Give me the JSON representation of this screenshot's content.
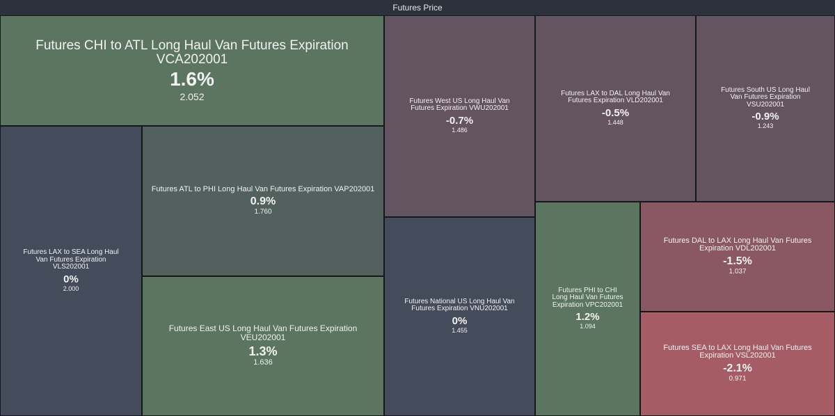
{
  "title": "Futures Price",
  "chart_data": {
    "type": "treemap",
    "title": "Futures Price",
    "size_field": "price",
    "color_field": "percent_change",
    "colors": {
      "positive": "#5b7560",
      "neutral": "#444b5a",
      "slightly_negative": "#645360",
      "negative": "#8a5862",
      "strongly_negative": "#a65c65"
    },
    "items": [
      {
        "name": "Futures CHI to ATL Long Haul Van Futures Expiration VCA202001",
        "change": "1.6%",
        "change_value": 1.6,
        "price": "2.052",
        "price_value": 2.052,
        "color": "#5b7560"
      },
      {
        "name": "Futures LAX to SEA Long Haul Van Futures Expiration VLS202001",
        "change": "0%",
        "change_value": 0,
        "price": "2.000",
        "price_value": 2.0,
        "color": "#444b5a"
      },
      {
        "name": "Futures ATL to PHI Long Haul Van Futures Expiration VAP202001",
        "change": "0.9%",
        "change_value": 0.9,
        "price": "1.760",
        "price_value": 1.76,
        "color": "#52615d"
      },
      {
        "name": "Futures East US Long Haul Van Futures Expiration VEU202001",
        "change": "1.3%",
        "change_value": 1.3,
        "price": "1.636",
        "price_value": 1.636,
        "color": "#5b7560"
      },
      {
        "name": "Futures West US Long Haul Van Futures Expiration VWU202001",
        "change": "-0.7%",
        "change_value": -0.7,
        "price": "1.486",
        "price_value": 1.486,
        "color": "#645360"
      },
      {
        "name": "Futures National US Long Haul Van Futures Expiration VNU202001",
        "change": "0%",
        "change_value": 0,
        "price": "1.455",
        "price_value": 1.455,
        "color": "#444b5a"
      },
      {
        "name": "Futures LAX to DAL Long Haul Van Futures Expiration VLD202001",
        "change": "-0.5%",
        "change_value": -0.5,
        "price": "1.448",
        "price_value": 1.448,
        "color": "#645360"
      },
      {
        "name": "Futures South US Long Haul Van Futures Expiration VSU202001",
        "change": "-0.9%",
        "change_value": -0.9,
        "price": "1.243",
        "price_value": 1.243,
        "color": "#645360"
      },
      {
        "name": "Futures PHI to CHI Long Haul Van Futures Expiration VPC202001",
        "change": "1.2%",
        "change_value": 1.2,
        "price": "1.094",
        "price_value": 1.094,
        "color": "#5b7560"
      },
      {
        "name": "Futures DAL to LAX Long Haul Van Futures Expiration VDL202001",
        "change": "-1.5%",
        "change_value": -1.5,
        "price": "1.037",
        "price_value": 1.037,
        "color": "#8a5862"
      },
      {
        "name": "Futures SEA to LAX Long Haul Van Futures Expiration VSL202001",
        "change": "-2.1%",
        "change_value": -2.1,
        "price": "0.971",
        "price_value": 0.971,
        "color": "#a65c65"
      }
    ]
  }
}
